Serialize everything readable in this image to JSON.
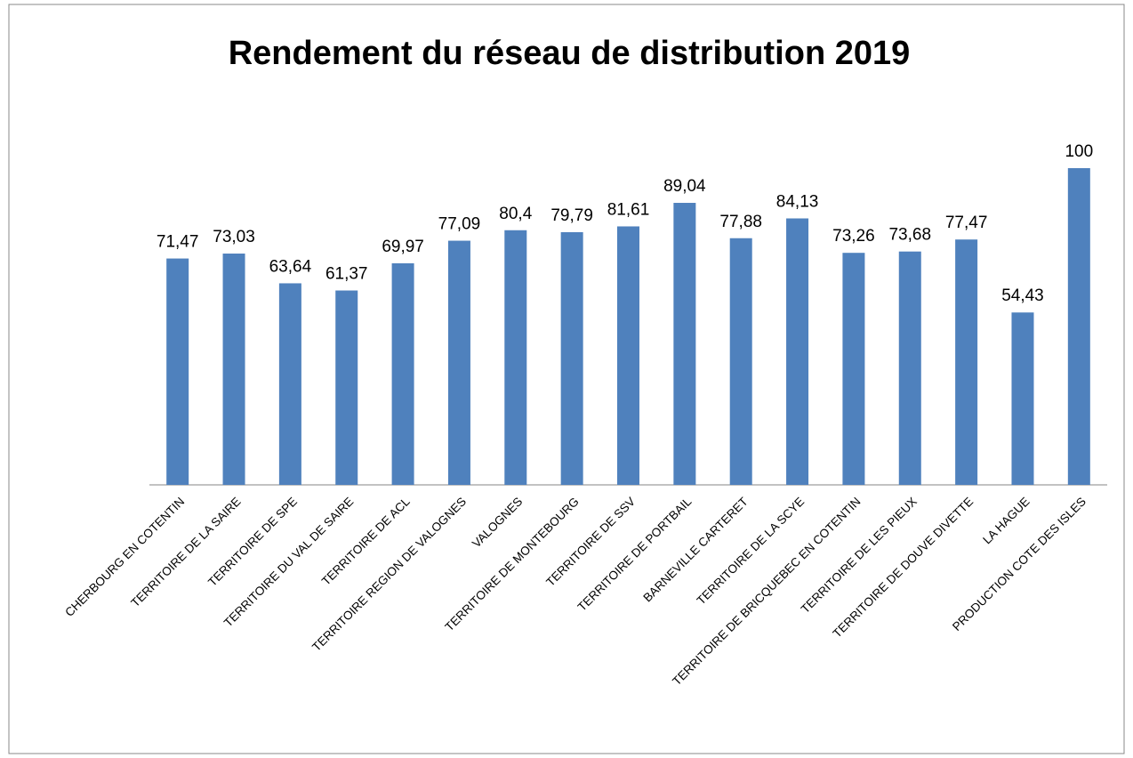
{
  "chart_data": {
    "type": "bar",
    "title": "Rendement du réseau de distribution 2019",
    "categories": [
      "CHERBOURG EN COTENTIN",
      "TERRITOIRE DE LA SAIRE",
      "TERRITOIRE DE  SPE",
      "TERRITOIRE DU VAL DE SAIRE",
      "TERRITOIRE DE ACL",
      "TERRITOIRE REGION DE VALOGNES",
      "VALOGNES",
      "TERRITOIRE DE MONTEBOURG",
      "TERRITOIRE DE  SSV",
      "TERRITOIRE DE PORTBAIL",
      "BARNEVILLE CARTERET",
      "TERRITOIRE DE LA SCYE",
      "TERRITOIRE DE BRICQUEBEC EN COTENTIN",
      "TERRITOIRE DE LES PIEUX",
      "TERRITOIRE DE DOUVE DIVETTE",
      "LA HAGUE",
      "PRODUCTION COTE DES ISLES"
    ],
    "values": [
      71.47,
      73.03,
      63.64,
      61.37,
      69.97,
      77.09,
      80.4,
      79.79,
      81.61,
      89.04,
      77.88,
      84.13,
      73.26,
      73.68,
      77.47,
      54.43,
      100
    ],
    "value_labels": [
      "71,47",
      "73,03",
      "63,64",
      "61,37",
      "69,97",
      "77,09",
      "80,4",
      "79,79",
      "81,61",
      "89,04",
      "77,88",
      "84,13",
      "73,26",
      "73,68",
      "77,47",
      "54,43",
      "100"
    ],
    "color": "#4f81bd"
  }
}
